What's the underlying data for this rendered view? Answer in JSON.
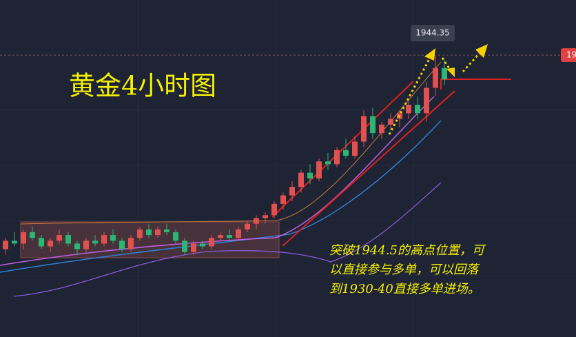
{
  "chart_data": {
    "type": "candlestick",
    "title": "黄金4小时图",
    "annotation": [
      "突破1944.5的高点位置，可",
      "以直接参与多单，可以回落",
      "到1930-40直接多单进场。"
    ],
    "price_label": 1944.35,
    "edge_label": "19",
    "up_color": "#e0524f",
    "down_color": "#2bb673",
    "ylim": [
      1845,
      1964
    ],
    "candles": [
      [
        1876,
        1880,
        1874,
        1879
      ],
      [
        1879,
        1882,
        1877,
        1878
      ],
      [
        1878,
        1883,
        1876,
        1882
      ],
      [
        1882,
        1884,
        1879,
        1880
      ],
      [
        1880,
        1881,
        1876,
        1877
      ],
      [
        1877,
        1880,
        1875,
        1879
      ],
      [
        1879,
        1883,
        1878,
        1881
      ],
      [
        1881,
        1882,
        1877,
        1878
      ],
      [
        1878,
        1879,
        1874,
        1876
      ],
      [
        1876,
        1880,
        1875,
        1879
      ],
      [
        1879,
        1881,
        1877,
        1878
      ],
      [
        1878,
        1882,
        1877,
        1881
      ],
      [
        1881,
        1883,
        1878,
        1879
      ],
      [
        1879,
        1880,
        1875,
        1876
      ],
      [
        1876,
        1881,
        1875,
        1880
      ],
      [
        1880,
        1884,
        1879,
        1883
      ],
      [
        1883,
        1885,
        1880,
        1881
      ],
      [
        1881,
        1884,
        1880,
        1883
      ],
      [
        1883,
        1885,
        1881,
        1882
      ],
      [
        1882,
        1883,
        1878,
        1879
      ],
      [
        1879,
        1880,
        1874,
        1875
      ],
      [
        1875,
        1879,
        1874,
        1878
      ],
      [
        1878,
        1879,
        1876,
        1877
      ],
      [
        1877,
        1881,
        1876,
        1880
      ],
      [
        1880,
        1882,
        1879,
        1881
      ],
      [
        1881,
        1883,
        1879,
        1880
      ],
      [
        1880,
        1884,
        1879,
        1883
      ],
      [
        1883,
        1886,
        1882,
        1885
      ],
      [
        1885,
        1888,
        1883,
        1887
      ],
      [
        1887,
        1889,
        1885,
        1888
      ],
      [
        1888,
        1893,
        1887,
        1892
      ],
      [
        1892,
        1896,
        1890,
        1895
      ],
      [
        1895,
        1900,
        1893,
        1898
      ],
      [
        1898,
        1904,
        1896,
        1903
      ],
      [
        1903,
        1906,
        1899,
        1901
      ],
      [
        1901,
        1908,
        1900,
        1907
      ],
      [
        1907,
        1910,
        1904,
        1906
      ],
      [
        1906,
        1912,
        1905,
        1911
      ],
      [
        1911,
        1915,
        1908,
        1909
      ],
      [
        1909,
        1916,
        1908,
        1914
      ],
      [
        1914,
        1925,
        1912,
        1923
      ],
      [
        1923,
        1926,
        1915,
        1917
      ],
      [
        1917,
        1921,
        1915,
        1920
      ],
      [
        1920,
        1924,
        1918,
        1922
      ],
      [
        1922,
        1925,
        1919,
        1924
      ],
      [
        1924,
        1929,
        1922,
        1927
      ],
      [
        1927,
        1930,
        1922,
        1924
      ],
      [
        1924,
        1935,
        1921,
        1933
      ],
      [
        1933,
        1944.35,
        1930,
        1940
      ],
      [
        1940,
        1943,
        1934,
        1936
      ]
    ]
  }
}
